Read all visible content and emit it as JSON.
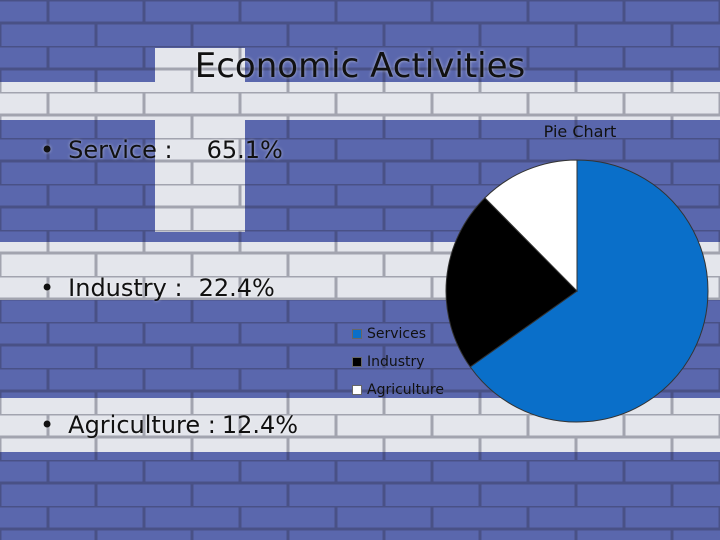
{
  "slide": {
    "title": "Economic Activities",
    "bullets": [
      {
        "label": "Service :",
        "value": "65.1%"
      },
      {
        "label": "Industry :",
        "value": "22.4%"
      },
      {
        "label": "Agriculture :",
        "value": "12.4%"
      }
    ],
    "bullet_glyph": "•"
  },
  "colors": {
    "stripe_blue": "#5a67ad",
    "stripe_white": "#e4e6ec",
    "services": "#0a6fc9",
    "industry": "#000000",
    "agriculture": "#ffffff"
  },
  "chart_data": {
    "type": "pie",
    "title": "Pie Chart",
    "categories": [
      "Services",
      "Industry",
      "Agriculture"
    ],
    "values": [
      65.1,
      22.4,
      12.4
    ],
    "legend_position": "left"
  }
}
